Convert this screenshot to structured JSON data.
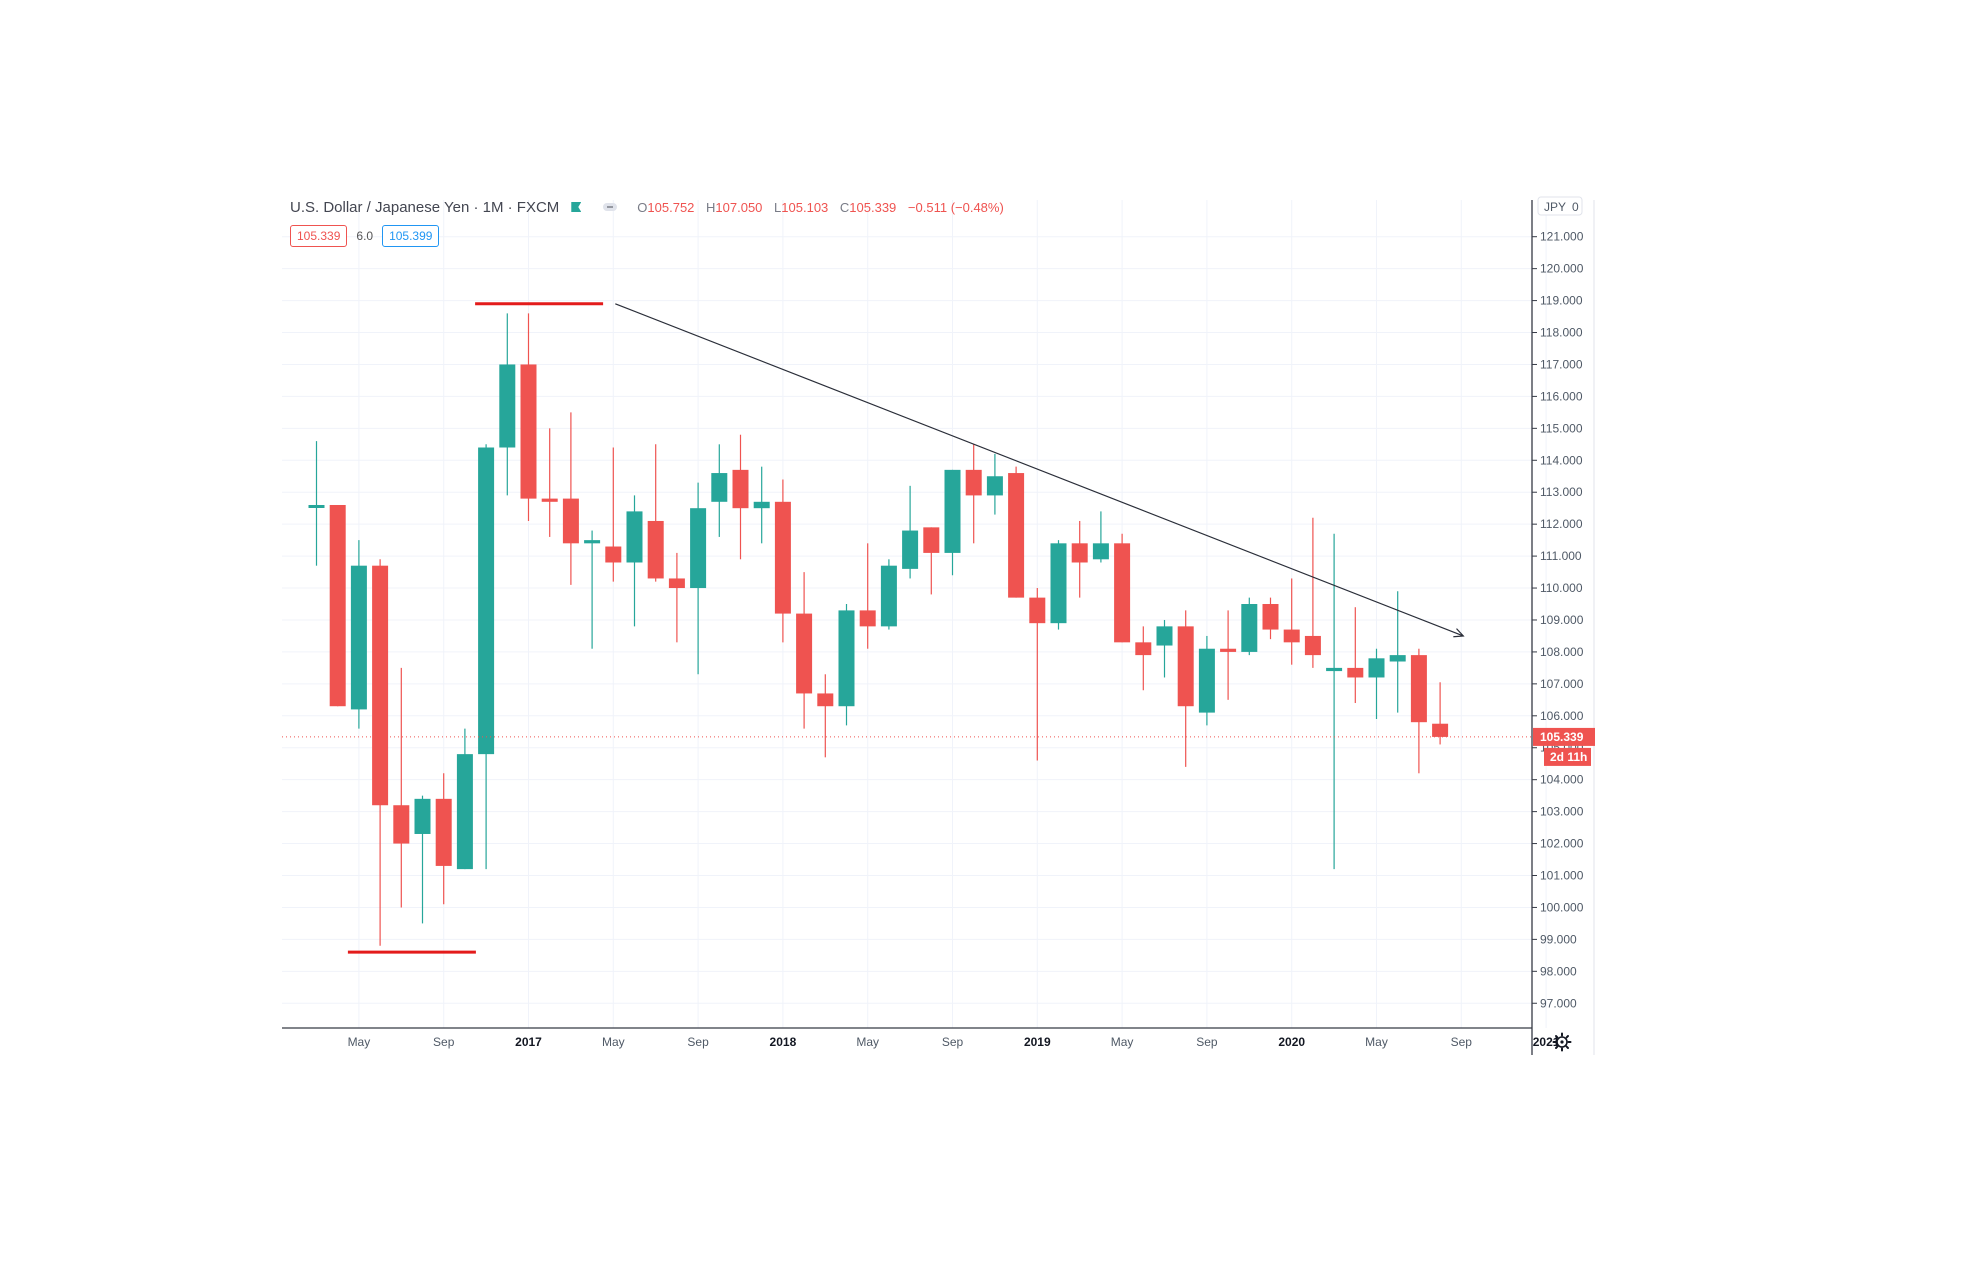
{
  "header": {
    "symbol": "U.S. Dollar / Japanese Yen · 1M · FXCM",
    "open": "105.752",
    "high": "107.050",
    "low": "105.103",
    "close": "105.339",
    "change": "−0.511 (−0.48%)",
    "label_open": "O",
    "label_high": "H",
    "label_low": "L",
    "label_close": "C"
  },
  "quote": {
    "sell": "105.339",
    "spread": "6.0",
    "buy": "105.399"
  },
  "price_axis": {
    "currency": "JPY",
    "currency_suffix": "0",
    "last_price": "105.339",
    "countdown": "2d 11h"
  },
  "colors": {
    "up": "#26a69a",
    "down": "#ef5350",
    "grid": "#f0f3fa",
    "trendline": "#2a2e39",
    "level_marker": "#e31b1b"
  },
  "icons": [
    "flag-icon",
    "settings-gear-icon"
  ],
  "chart_data": {
    "type": "candlestick",
    "title": "U.S. Dollar / Japanese Yen · 1M · FXCM",
    "interval": "1M",
    "x_ticks": [
      "May",
      "Sep",
      "2017",
      "May",
      "Sep",
      "2018",
      "May",
      "Sep",
      "2019",
      "May",
      "Sep",
      "2020",
      "May",
      "Sep",
      "2021"
    ],
    "y_ticks": [
      "121.000",
      "120.000",
      "119.000",
      "118.000",
      "117.000",
      "116.000",
      "115.000",
      "114.000",
      "113.000",
      "112.000",
      "111.000",
      "110.000",
      "109.000",
      "108.000",
      "107.000",
      "106.000",
      "105.000",
      "104.000",
      "103.000",
      "102.000",
      "101.000",
      "100.000",
      "99.000",
      "98.000",
      "97.000"
    ],
    "ylim": [
      96.2,
      122.0
    ],
    "xlim": [
      "2016-01",
      "2021-02"
    ],
    "grid": true,
    "candles": [
      {
        "t": "2016-03",
        "o": 112.6,
        "h": 114.6,
        "l": 110.7,
        "c": 112.6
      },
      {
        "t": "2016-04",
        "o": 112.6,
        "h": 112.6,
        "l": 106.3,
        "c": 106.3
      },
      {
        "t": "2016-05",
        "o": 106.2,
        "h": 111.5,
        "l": 105.6,
        "c": 110.7
      },
      {
        "t": "2016-06",
        "o": 110.7,
        "h": 110.9,
        "l": 98.8,
        "c": 103.2
      },
      {
        "t": "2016-07",
        "o": 103.2,
        "h": 107.5,
        "l": 100.0,
        "c": 102.0
      },
      {
        "t": "2016-08",
        "o": 102.3,
        "h": 103.5,
        "l": 99.5,
        "c": 103.4
      },
      {
        "t": "2016-09",
        "o": 103.4,
        "h": 104.2,
        "l": 100.1,
        "c": 101.3
      },
      {
        "t": "2016-10",
        "o": 101.2,
        "h": 105.6,
        "l": 101.2,
        "c": 104.8
      },
      {
        "t": "2016-11",
        "o": 104.8,
        "h": 114.5,
        "l": 101.2,
        "c": 114.4
      },
      {
        "t": "2016-12",
        "o": 114.4,
        "h": 118.6,
        "l": 112.9,
        "c": 117.0
      },
      {
        "t": "2017-01",
        "o": 117.0,
        "h": 118.6,
        "l": 112.1,
        "c": 112.8
      },
      {
        "t": "2017-02",
        "o": 112.8,
        "h": 115.0,
        "l": 111.6,
        "c": 112.7
      },
      {
        "t": "2017-03",
        "o": 112.8,
        "h": 115.5,
        "l": 110.1,
        "c": 111.4
      },
      {
        "t": "2017-04",
        "o": 111.4,
        "h": 111.8,
        "l": 108.1,
        "c": 111.5
      },
      {
        "t": "2017-05",
        "o": 111.3,
        "h": 114.4,
        "l": 110.2,
        "c": 110.8
      },
      {
        "t": "2017-06",
        "o": 110.8,
        "h": 112.9,
        "l": 108.8,
        "c": 112.4
      },
      {
        "t": "2017-07",
        "o": 112.1,
        "h": 114.5,
        "l": 110.2,
        "c": 110.3
      },
      {
        "t": "2017-08",
        "o": 110.3,
        "h": 111.1,
        "l": 108.3,
        "c": 110.0
      },
      {
        "t": "2017-09",
        "o": 110.0,
        "h": 113.3,
        "l": 107.3,
        "c": 112.5
      },
      {
        "t": "2017-10",
        "o": 112.7,
        "h": 114.5,
        "l": 111.6,
        "c": 113.6
      },
      {
        "t": "2017-11",
        "o": 113.7,
        "h": 114.8,
        "l": 110.9,
        "c": 112.5
      },
      {
        "t": "2017-12",
        "o": 112.5,
        "h": 113.8,
        "l": 111.4,
        "c": 112.7
      },
      {
        "t": "2018-01",
        "o": 112.7,
        "h": 113.4,
        "l": 108.3,
        "c": 109.2
      },
      {
        "t": "2018-02",
        "o": 109.2,
        "h": 110.5,
        "l": 105.6,
        "c": 106.7
      },
      {
        "t": "2018-03",
        "o": 106.7,
        "h": 107.3,
        "l": 104.7,
        "c": 106.3
      },
      {
        "t": "2018-04",
        "o": 106.3,
        "h": 109.5,
        "l": 105.7,
        "c": 109.3
      },
      {
        "t": "2018-05",
        "o": 109.3,
        "h": 111.4,
        "l": 108.1,
        "c": 108.8
      },
      {
        "t": "2018-06",
        "o": 108.8,
        "h": 110.9,
        "l": 108.7,
        "c": 110.7
      },
      {
        "t": "2018-07",
        "o": 110.6,
        "h": 113.2,
        "l": 110.3,
        "c": 111.8
      },
      {
        "t": "2018-08",
        "o": 111.9,
        "h": 111.9,
        "l": 109.8,
        "c": 111.1
      },
      {
        "t": "2018-09",
        "o": 111.1,
        "h": 113.7,
        "l": 110.4,
        "c": 113.7
      },
      {
        "t": "2018-10",
        "o": 113.7,
        "h": 114.5,
        "l": 111.4,
        "c": 112.9
      },
      {
        "t": "2018-11",
        "o": 112.9,
        "h": 114.2,
        "l": 112.3,
        "c": 113.5
      },
      {
        "t": "2018-12",
        "o": 113.6,
        "h": 113.8,
        "l": 109.7,
        "c": 109.7
      },
      {
        "t": "2019-01",
        "o": 109.7,
        "h": 110.0,
        "l": 104.6,
        "c": 108.9
      },
      {
        "t": "2019-02",
        "o": 108.9,
        "h": 111.5,
        "l": 108.7,
        "c": 111.4
      },
      {
        "t": "2019-03",
        "o": 111.4,
        "h": 112.1,
        "l": 109.7,
        "c": 110.8
      },
      {
        "t": "2019-04",
        "o": 110.9,
        "h": 112.4,
        "l": 110.8,
        "c": 111.4
      },
      {
        "t": "2019-05",
        "o": 111.4,
        "h": 111.7,
        "l": 108.3,
        "c": 108.3
      },
      {
        "t": "2019-06",
        "o": 108.3,
        "h": 108.8,
        "l": 106.8,
        "c": 107.9
      },
      {
        "t": "2019-07",
        "o": 108.2,
        "h": 109.0,
        "l": 107.2,
        "c": 108.8
      },
      {
        "t": "2019-08",
        "o": 108.8,
        "h": 109.3,
        "l": 104.4,
        "c": 106.3
      },
      {
        "t": "2019-09",
        "o": 106.1,
        "h": 108.5,
        "l": 105.7,
        "c": 108.1
      },
      {
        "t": "2019-10",
        "o": 108.1,
        "h": 109.3,
        "l": 106.5,
        "c": 108.0
      },
      {
        "t": "2019-11",
        "o": 108.0,
        "h": 109.7,
        "l": 107.9,
        "c": 109.5
      },
      {
        "t": "2019-12",
        "o": 109.5,
        "h": 109.7,
        "l": 108.4,
        "c": 108.7
      },
      {
        "t": "2020-01",
        "o": 108.7,
        "h": 110.3,
        "l": 107.6,
        "c": 108.3
      },
      {
        "t": "2020-02",
        "o": 108.5,
        "h": 112.2,
        "l": 107.5,
        "c": 107.9
      },
      {
        "t": "2020-03",
        "o": 107.4,
        "h": 111.7,
        "l": 101.2,
        "c": 107.5
      },
      {
        "t": "2020-04",
        "o": 107.5,
        "h": 109.4,
        "l": 106.4,
        "c": 107.2
      },
      {
        "t": "2020-05",
        "o": 107.2,
        "h": 108.1,
        "l": 105.9,
        "c": 107.8
      },
      {
        "t": "2020-06",
        "o": 107.7,
        "h": 109.9,
        "l": 106.1,
        "c": 107.9
      },
      {
        "t": "2020-07",
        "o": 107.9,
        "h": 108.1,
        "l": 104.2,
        "c": 105.8
      },
      {
        "t": "2020-08",
        "o": 105.752,
        "h": 107.05,
        "l": 105.103,
        "c": 105.339
      }
    ],
    "annotations": {
      "resistance_level": {
        "from": "2016-11",
        "to": "2017-04",
        "y": 118.9
      },
      "support_level": {
        "from": "2016-05",
        "to": "2016-10",
        "y": 98.6
      },
      "trendline": {
        "from": {
          "t": "2017-05",
          "y": 118.9
        },
        "to": {
          "t": "2020-09",
          "y": 108.5
        }
      }
    }
  }
}
